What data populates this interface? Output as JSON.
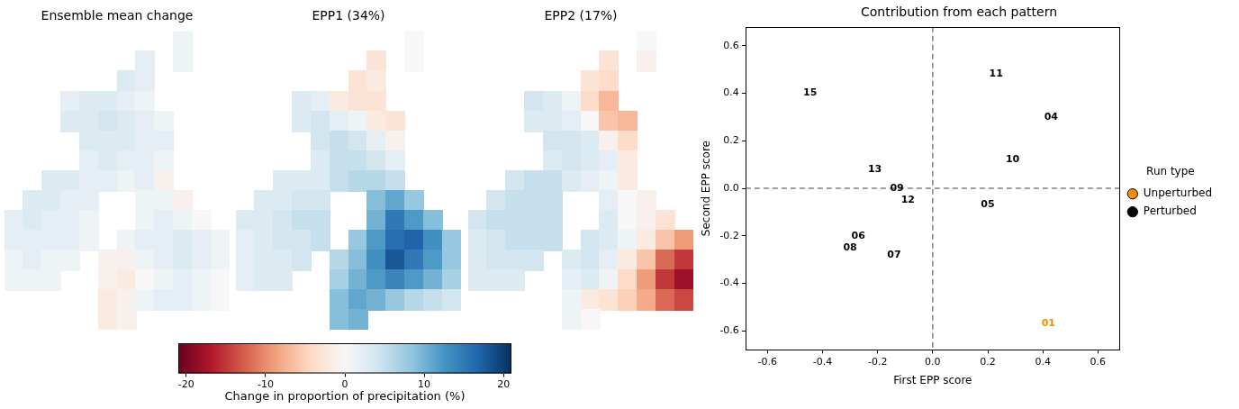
{
  "chart_data": [
    {
      "type": "heatmap",
      "title": "Ensemble mean change",
      "tick_labels": false,
      "x": [
        -10,
        -9,
        -8,
        -7,
        -6,
        -5,
        -4,
        -3,
        -2,
        -1,
        0,
        1
      ],
      "y": [
        60.5,
        59.75,
        59,
        58.25,
        57.5,
        56.75,
        56,
        55.25,
        54.5,
        53.75,
        53,
        52.25,
        51.5,
        50.75,
        50
      ],
      "cells": [
        [
          null,
          null,
          null,
          null,
          null,
          null,
          null,
          null,
          null,
          1,
          null,
          null
        ],
        [
          null,
          null,
          null,
          null,
          null,
          null,
          null,
          2,
          null,
          1,
          null,
          null
        ],
        [
          null,
          null,
          null,
          null,
          null,
          null,
          3,
          2,
          null,
          null,
          null,
          null
        ],
        [
          null,
          null,
          null,
          2,
          3,
          3,
          2,
          1,
          null,
          null,
          null,
          null
        ],
        [
          null,
          null,
          null,
          3,
          3,
          4,
          3,
          2,
          1,
          null,
          null,
          null
        ],
        [
          null,
          null,
          null,
          null,
          3,
          3,
          3,
          2,
          2,
          null,
          null,
          null
        ],
        [
          null,
          null,
          null,
          null,
          2,
          3,
          2,
          2,
          1,
          null,
          null,
          null
        ],
        [
          null,
          null,
          3,
          3,
          2,
          2,
          1,
          2,
          -1,
          null,
          null,
          null
        ],
        [
          null,
          3,
          3,
          2,
          2,
          null,
          null,
          1,
          1,
          -1,
          null,
          null
        ],
        [
          2,
          3,
          2,
          2,
          1,
          null,
          null,
          1,
          2,
          1,
          0,
          null
        ],
        [
          2,
          2,
          2,
          2,
          1,
          null,
          1,
          2,
          2,
          3,
          2,
          1
        ],
        [
          1,
          2,
          1,
          1,
          null,
          -1,
          -1,
          1,
          2,
          3,
          2,
          1
        ],
        [
          1,
          1,
          1,
          null,
          null,
          -1,
          -2,
          0,
          1,
          2,
          1,
          0
        ],
        [
          null,
          null,
          null,
          null,
          null,
          -2,
          -1,
          1,
          2,
          2,
          1,
          0
        ],
        [
          null,
          null,
          null,
          null,
          null,
          -2,
          -1,
          null,
          null,
          null,
          null,
          null
        ]
      ]
    },
    {
      "type": "heatmap",
      "title": "EPP1 (34%)",
      "tick_labels": false,
      "x": [
        -10,
        -9,
        -8,
        -7,
        -6,
        -5,
        -4,
        -3,
        -2,
        -1,
        0,
        1
      ],
      "y": [
        60.5,
        59.75,
        59,
        58.25,
        57.5,
        56.75,
        56,
        55.25,
        54.5,
        53.75,
        53,
        52.25,
        51.5,
        50.75,
        50
      ],
      "cells": [
        [
          null,
          null,
          null,
          null,
          null,
          null,
          null,
          null,
          null,
          0,
          null,
          null
        ],
        [
          null,
          null,
          null,
          null,
          null,
          null,
          null,
          -3,
          null,
          0,
          null,
          null
        ],
        [
          null,
          null,
          null,
          null,
          null,
          null,
          -3,
          -2,
          null,
          null,
          null,
          null
        ],
        [
          null,
          null,
          null,
          3,
          2,
          -2,
          -3,
          -3,
          null,
          null,
          null,
          null
        ],
        [
          null,
          null,
          null,
          3,
          4,
          2,
          1,
          -2,
          -3,
          null,
          null,
          null
        ],
        [
          null,
          null,
          null,
          null,
          4,
          5,
          4,
          2,
          -1,
          null,
          null,
          null
        ],
        [
          null,
          null,
          null,
          null,
          3,
          5,
          5,
          4,
          2,
          null,
          null,
          null
        ],
        [
          null,
          null,
          3,
          3,
          3,
          5,
          6,
          6,
          5,
          null,
          null,
          null
        ],
        [
          null,
          3,
          3,
          4,
          4,
          null,
          null,
          9,
          11,
          8,
          null,
          null
        ],
        [
          3,
          3,
          4,
          5,
          5,
          null,
          null,
          10,
          15,
          12,
          9,
          null
        ],
        [
          2,
          3,
          4,
          4,
          5,
          null,
          8,
          12,
          16,
          17,
          13,
          8
        ],
        [
          2,
          3,
          3,
          4,
          null,
          6,
          9,
          13,
          18,
          15,
          12,
          8
        ],
        [
          2,
          3,
          3,
          null,
          null,
          7,
          10,
          12,
          14,
          12,
          10,
          7
        ],
        [
          null,
          null,
          null,
          null,
          null,
          9,
          11,
          10,
          8,
          6,
          5,
          4
        ],
        [
          null,
          null,
          null,
          null,
          null,
          9,
          10,
          null,
          null,
          null,
          null,
          null
        ]
      ]
    },
    {
      "type": "heatmap",
      "title": "EPP2 (17%)",
      "tick_labels": false,
      "x": [
        -10,
        -9,
        -8,
        -7,
        -6,
        -5,
        -4,
        -3,
        -2,
        -1,
        0,
        1
      ],
      "y": [
        60.5,
        59.75,
        59,
        58.25,
        57.5,
        56.75,
        56,
        55.25,
        54.5,
        53.75,
        53,
        52.25,
        51.5,
        50.75,
        50
      ],
      "cells": [
        [
          null,
          null,
          null,
          null,
          null,
          null,
          null,
          null,
          null,
          0,
          null,
          null
        ],
        [
          null,
          null,
          null,
          null,
          null,
          null,
          null,
          -3,
          null,
          -1,
          null,
          null
        ],
        [
          null,
          null,
          null,
          null,
          null,
          null,
          -3,
          -4,
          null,
          null,
          null,
          null
        ],
        [
          null,
          null,
          null,
          4,
          3,
          1,
          -4,
          -7,
          null,
          null,
          null,
          null
        ],
        [
          null,
          null,
          null,
          3,
          3,
          2,
          0,
          -6,
          -7,
          null,
          null,
          null
        ],
        [
          null,
          null,
          null,
          null,
          4,
          4,
          3,
          -1,
          -4,
          null,
          null,
          null
        ],
        [
          null,
          null,
          null,
          null,
          3,
          4,
          3,
          2,
          -2,
          null,
          null,
          null
        ],
        [
          null,
          null,
          4,
          5,
          5,
          3,
          2,
          1,
          -2,
          null,
          null,
          null
        ],
        [
          null,
          4,
          5,
          5,
          5,
          null,
          null,
          2,
          0,
          -1,
          null,
          null
        ],
        [
          4,
          5,
          5,
          5,
          5,
          null,
          null,
          3,
          0,
          -1,
          -3,
          null
        ],
        [
          3,
          4,
          5,
          5,
          5,
          null,
          4,
          3,
          1,
          -2,
          -6,
          -9
        ],
        [
          3,
          4,
          4,
          4,
          null,
          3,
          4,
          2,
          -2,
          -6,
          -12,
          -15
        ],
        [
          3,
          3,
          3,
          null,
          null,
          2,
          3,
          1,
          -4,
          -9,
          -15,
          -18
        ],
        [
          null,
          null,
          null,
          null,
          null,
          1,
          -2,
          -3,
          -5,
          -8,
          -12,
          -14
        ],
        [
          null,
          null,
          null,
          null,
          null,
          1,
          0,
          null,
          null,
          null,
          null,
          null
        ]
      ]
    },
    {
      "type": "colorbar",
      "xlabel": "Change in proportion of precipitation (%)",
      "color": "RdBu",
      "xlim": [
        -21,
        21
      ],
      "xticks": [
        -20,
        -10,
        0,
        10,
        20
      ]
    },
    {
      "type": "scatter",
      "title": "Contribution from each pattern",
      "xlabel": "First EPP score",
      "ylabel": "Second EPP score",
      "xlim": [
        -0.68,
        0.68
      ],
      "ylim": [
        -0.68,
        0.68
      ],
      "xticks": [
        -0.6,
        -0.4,
        -0.2,
        {
          "value": 0,
          "label": "0.0"
        },
        0.2,
        0.4,
        0.6
      ],
      "yticks": [
        -0.6,
        -0.4,
        -0.2,
        {
          "value": 0,
          "label": "0.0"
        },
        0.2,
        0.4,
        0.6
      ],
      "grid": false,
      "legend": "right",
      "legend_title": "Run type",
      "hline": 0,
      "vline": 0,
      "series": [
        {
          "name": "Unperturbed",
          "color": "#ff8c00",
          "labels": [
            "01"
          ],
          "x": [
            0.42
          ],
          "y": [
            -0.57
          ]
        },
        {
          "name": "Perturbed",
          "color": "#000000",
          "labels": [
            "15",
            "11",
            "04",
            "10",
            "13",
            "09",
            "12",
            "05",
            "06",
            "08",
            "07"
          ],
          "x": [
            -0.445,
            0.23,
            0.43,
            0.29,
            -0.21,
            -0.13,
            -0.09,
            0.2,
            -0.27,
            -0.3,
            -0.14
          ],
          "y": [
            0.4,
            0.48,
            0.3,
            0.12,
            0.08,
            0,
            -0.05,
            -0.07,
            -0.2,
            -0.25,
            -0.28
          ]
        }
      ]
    }
  ]
}
